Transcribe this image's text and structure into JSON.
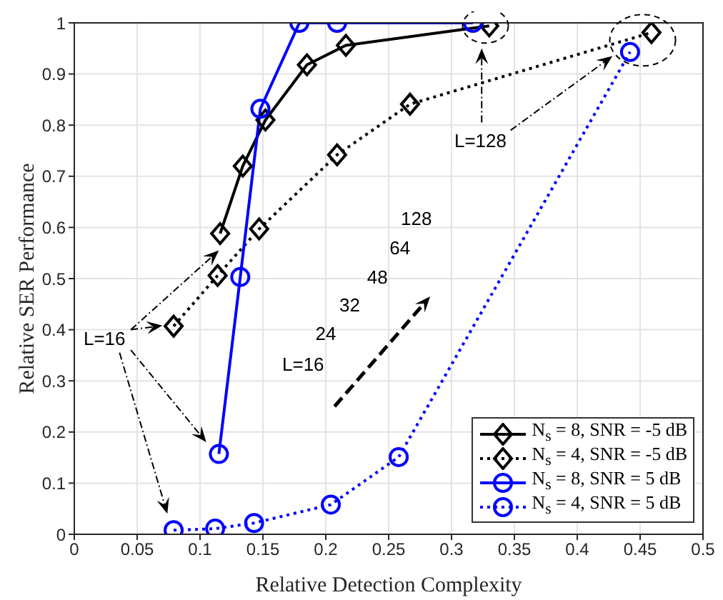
{
  "chart_data": {
    "type": "line",
    "xlabel": "Relative Detection Complexity",
    "ylabel": "Relative SER Performance",
    "xlim": [
      0,
      0.5
    ],
    "xticks": [
      0,
      0.05,
      0.1,
      0.15,
      0.2,
      0.25,
      0.3,
      0.35,
      0.4,
      0.45,
      0.5
    ],
    "ylim": [
      0,
      1
    ],
    "yticks": [
      0,
      0.1,
      0.2,
      0.3,
      0.4,
      0.5,
      0.6,
      0.7,
      0.8,
      0.9,
      1
    ],
    "grid": true,
    "legend": "bottom right",
    "series": [
      {
        "name": "N$_{s}$ = 8, SNR = -5 dB",
        "color": "#000000",
        "marker": "diamond",
        "line_style": "solid",
        "x": [
          0.116,
          0.134,
          0.152,
          0.185,
          0.216,
          0.33
        ],
        "values": [
          0.588,
          0.72,
          0.81,
          0.918,
          0.956,
          0.994
        ]
      },
      {
        "name": "N$_{s}$ = 4, SNR = -5 dB",
        "color": "#000000",
        "marker": "diamond",
        "line_style": "dotted",
        "x": [
          0.079,
          0.114,
          0.147,
          0.209,
          0.267,
          0.459
        ],
        "values": [
          0.407,
          0.506,
          0.597,
          0.742,
          0.841,
          0.981
        ]
      },
      {
        "name": "N$_{s}$ = 8, SNR = 5 dB",
        "color": "#0000ff",
        "marker": "circle",
        "line_style": "solid",
        "x": [
          0.115,
          0.132,
          0.148,
          0.179,
          0.209,
          0.317
        ],
        "values": [
          0.157,
          0.503,
          0.832,
          1.0,
          1.0,
          1.0
        ]
      },
      {
        "name": "N$_{s}$ = 4, SNR = 5 dB",
        "color": "#0000ff",
        "marker": "circle",
        "line_style": "dotted",
        "x": [
          0.079,
          0.112,
          0.143,
          0.204,
          0.258,
          0.442
        ],
        "values": [
          0.008,
          0.011,
          0.022,
          0.058,
          0.151,
          0.943
        ]
      }
    ],
    "annotations": [
      "L=16",
      "L=128",
      "L=16",
      "24",
      "32",
      "48",
      "64",
      "128"
    ]
  }
}
